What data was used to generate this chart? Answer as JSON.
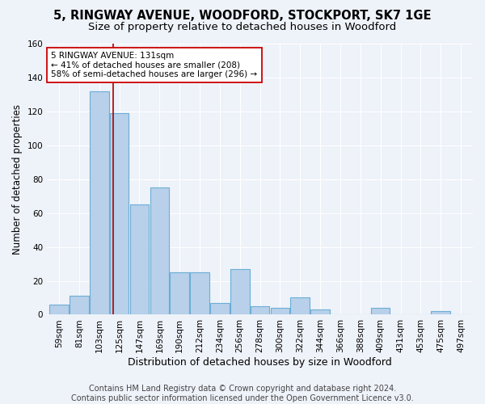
{
  "title": "5, RINGWAY AVENUE, WOODFORD, STOCKPORT, SK7 1GE",
  "subtitle": "Size of property relative to detached houses in Woodford",
  "xlabel": "Distribution of detached houses by size in Woodford",
  "ylabel": "Number of detached properties",
  "categories": [
    "59sqm",
    "81sqm",
    "103sqm",
    "125sqm",
    "147sqm",
    "169sqm",
    "190sqm",
    "212sqm",
    "234sqm",
    "256sqm",
    "278sqm",
    "300sqm",
    "322sqm",
    "344sqm",
    "366sqm",
    "388sqm",
    "409sqm",
    "431sqm",
    "453sqm",
    "475sqm",
    "497sqm"
  ],
  "values": [
    6,
    11,
    132,
    119,
    65,
    75,
    25,
    25,
    7,
    27,
    5,
    4,
    10,
    3,
    0,
    0,
    4,
    0,
    0,
    2,
    0
  ],
  "bar_color": "#b8d0ea",
  "bar_edge_color": "#6baed6",
  "vline_x": 2.68,
  "vline_color": "#aa0000",
  "annotation_line1": "5 RINGWAY AVENUE: 131sqm",
  "annotation_line2": "← 41% of detached houses are smaller (208)",
  "annotation_line3": "58% of semi-detached houses are larger (296) →",
  "annotation_box_color": "white",
  "annotation_box_edge": "#cc0000",
  "ylim": [
    0,
    160
  ],
  "yticks": [
    0,
    20,
    40,
    60,
    80,
    100,
    120,
    140,
    160
  ],
  "footer": "Contains HM Land Registry data © Crown copyright and database right 2024.\nContains public sector information licensed under the Open Government Licence v3.0.",
  "background_color": "#eef2f9",
  "grid_color": "white",
  "title_fontsize": 10.5,
  "subtitle_fontsize": 9.5,
  "xlabel_fontsize": 9,
  "ylabel_fontsize": 8.5,
  "tick_fontsize": 7.5,
  "annotation_fontsize": 7.5,
  "footer_fontsize": 7
}
